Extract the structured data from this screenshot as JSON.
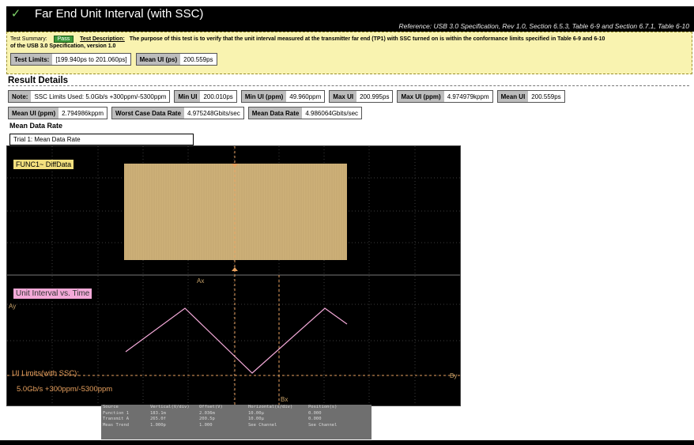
{
  "header": {
    "title": "Far End Unit Interval (with SSC)",
    "reference": "Reference: USB 3.0 Specification, Rev 1.0, Section 6.5.3, Table 6-9 and Section 6.7.1, Table 6-10"
  },
  "summary": {
    "test_summary_label": "Test Summary:",
    "status": "Pass",
    "test_description_label": "Test Description:",
    "description": "The purpose of this test is to verify that the unit interval measured at the transmitter far end (TP1) with SSC turned on is within the conformance limits specified in Table 6-9 and 6-10",
    "description_cont": "of the USB 3.0 Specification, version 1.0",
    "test_limits_label": "Test Limits:",
    "test_limits_value": "[199.940ps to 201.060ps]",
    "mean_ui_label": "Mean UI (ps)",
    "mean_ui_value": "200.559ps"
  },
  "results": {
    "title": "Result Details",
    "row1": [
      {
        "k": "Note:",
        "v": "SSC Limits Used: 5.0Gb/s +300ppm/-5300ppm"
      },
      {
        "k": "Min UI",
        "v": "200.010ps"
      },
      {
        "k": "Min UI (ppm)",
        "v": "49.960ppm"
      },
      {
        "k": "Max UI",
        "v": "200.995ps"
      },
      {
        "k": "Max UI (ppm)",
        "v": "4.974979kppm"
      },
      {
        "k": "Mean UI",
        "v": "200.559ps"
      }
    ],
    "row2": [
      {
        "k": "Mean UI (ppm)",
        "v": "2.794986kppm"
      },
      {
        "k": "Worst Case Data Rate",
        "v": "4.975248Gbits/sec"
      },
      {
        "k": "Mean Data Rate",
        "v": "4.986064Gbits/sec"
      }
    ]
  },
  "mean_data_rate": {
    "label": "Mean Data Rate",
    "trial": "Trial 1: Mean Data Rate"
  },
  "scope": {
    "func1_label": "FUNC1~ DiffData",
    "ui_vs_time_label": "Unit Interval vs. Time",
    "ui_limits_line1": "UI Limits(with SSC):",
    "ui_limits_line2": "5.0Gb/s +300ppm/-5300ppm",
    "cursor_a_label": "Ay",
    "cursor_ax_label": "Ax",
    "cursor_bx_label": "Bx",
    "cursor_by_label": "By",
    "colors": {
      "waveform": "#cdb078",
      "ui_trace": "#f3a9d8",
      "limits": "#e8a15f",
      "grid": "#5a5a5a"
    }
  },
  "readout": {
    "headers": [
      "Source",
      "Vertical(V/div)",
      "Offset(V)",
      "Horizontal(s/div)",
      "Position(s)"
    ],
    "rows": [
      [
        "Function 1",
        "183.1m",
        "2.036m",
        "10.00µ",
        "0.000"
      ],
      [
        "Transmit A",
        "265.0f",
        "200.5p",
        "10.00µ",
        "0.000"
      ],
      [
        "Meas Trend",
        "1.000p",
        "1.000",
        "See Channel",
        "See Channel"
      ]
    ]
  }
}
